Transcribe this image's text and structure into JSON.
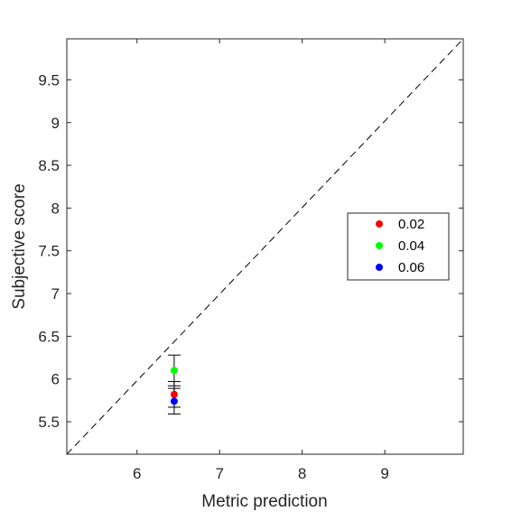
{
  "chart_data": {
    "type": "scatter",
    "title": "",
    "xlabel": "Metric prediction",
    "ylabel": "Subjective score",
    "xlim": [
      5.15,
      9.95
    ],
    "ylim": [
      5.12,
      9.98
    ],
    "xticks": [
      "6",
      "7",
      "8",
      "9"
    ],
    "xtick_values": [
      6,
      7,
      8,
      9
    ],
    "yticks": [
      "5.5",
      "6",
      "6.5",
      "7",
      "7.5",
      "8",
      "8.5",
      "9",
      "9.5"
    ],
    "ytick_values": [
      5.5,
      6,
      6.5,
      7,
      7.5,
      8,
      8.5,
      9,
      9.5
    ],
    "grid": false,
    "legend_position": "right",
    "reference_line": {
      "style": "dashed",
      "from": [
        5.15,
        5.12
      ],
      "to": [
        9.95,
        9.98
      ]
    },
    "series": [
      {
        "name": "0.02",
        "color": "#ff0000",
        "x": 6.45,
        "y": 5.82,
        "err_low": 5.67,
        "err_high": 5.97
      },
      {
        "name": "0.04",
        "color": "#00ff00",
        "x": 6.45,
        "y": 6.1,
        "err_low": 5.92,
        "err_high": 6.28
      },
      {
        "name": "0.06",
        "color": "#0000ff",
        "x": 6.45,
        "y": 5.74,
        "err_low": 5.59,
        "err_high": 5.89
      }
    ]
  }
}
